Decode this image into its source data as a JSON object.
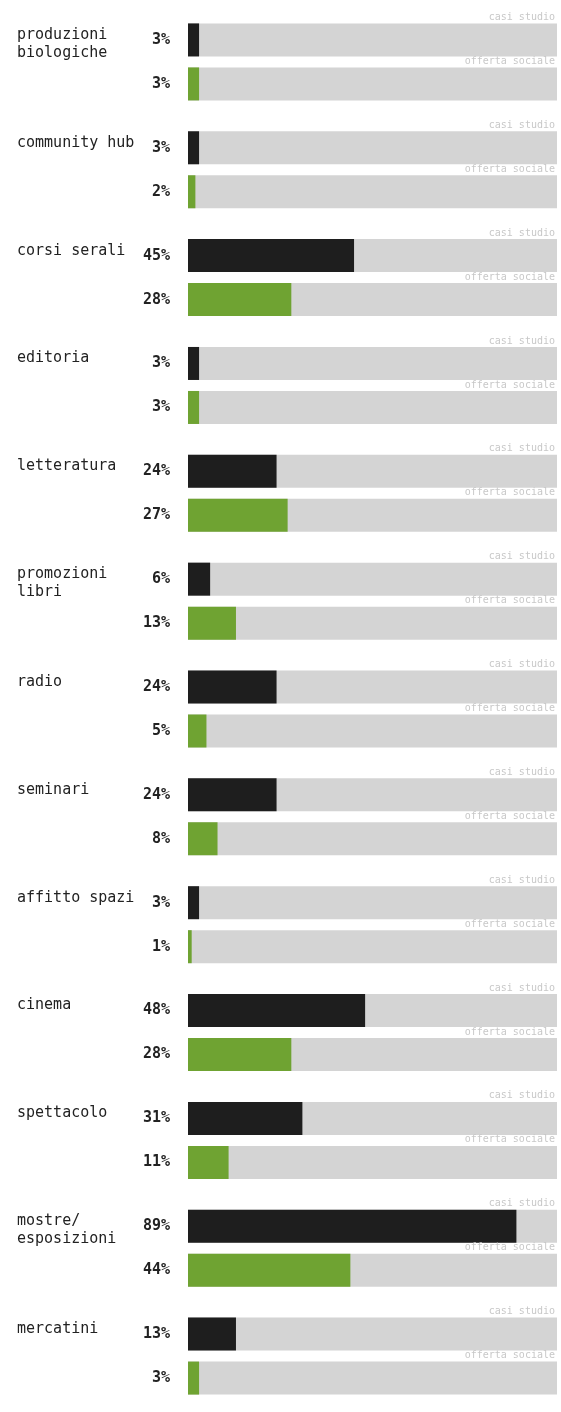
{
  "chart_data": {
    "type": "bar",
    "orientation": "horizontal",
    "categories": [
      "produzioni biologiche",
      "community hub",
      "corsi serali",
      "editoria",
      "letteratura",
      "promozioni libri",
      "radio",
      "seminari",
      "affitto spazi",
      "cinema",
      "spettacolo",
      "mostre/ esposizioni",
      "mercatini"
    ],
    "series": [
      {
        "name": "casi studio",
        "color": "#1e1e1e",
        "values": [
          3,
          3,
          45,
          3,
          24,
          6,
          24,
          24,
          3,
          48,
          31,
          89,
          13
        ],
        "value_labels": [
          "3%",
          "3%",
          "45%",
          "3%",
          "24%",
          "6%",
          "24%",
          "24%",
          "3%",
          "48%",
          "31%",
          "89%",
          "13%"
        ]
      },
      {
        "name": "offerta sociale",
        "color": "#6fa332",
        "values": [
          3,
          2,
          28,
          3,
          27,
          13,
          5,
          8,
          1,
          28,
          11,
          44,
          3
        ],
        "value_labels": [
          "3%",
          "2%",
          "28%",
          "3%",
          "27%",
          "13%",
          "5%",
          "8%",
          "1%",
          "28%",
          "11%",
          "44%",
          "3%"
        ]
      }
    ],
    "xlim": [
      0,
      100
    ],
    "tick_labels": false,
    "legend": false
  }
}
